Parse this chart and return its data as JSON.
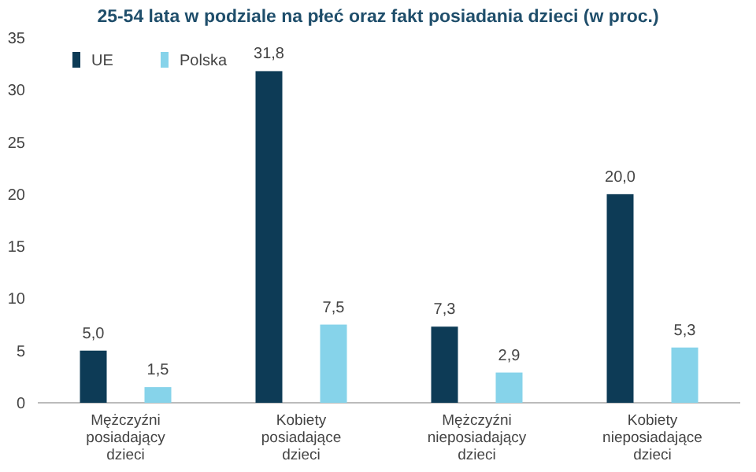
{
  "chart_data": {
    "type": "bar",
    "title": "25-54 lata w podziale na płeć oraz fakt posiadania dzieci (w proc.)",
    "categories": [
      "Mężczyźni posiadający dzieci",
      "Kobiety posiadające dzieci",
      "Mężczyźni nieposiadający dzieci",
      "Kobiety nieposiadające dzieci"
    ],
    "series": [
      {
        "name": "UE",
        "color": "#0d3b56",
        "values": [
          5.0,
          31.8,
          7.3,
          20.0
        ],
        "value_labels": [
          "5,0",
          "31,8",
          "7,3",
          "20,0"
        ]
      },
      {
        "name": "Polska",
        "color": "#86d3ea",
        "values": [
          1.5,
          7.5,
          2.9,
          5.3
        ],
        "value_labels": [
          "1,5",
          "7,5",
          "2,9",
          "5,3"
        ]
      }
    ],
    "ylim": [
      0,
      35
    ],
    "yticks": [
      0,
      5,
      10,
      15,
      20,
      25,
      30,
      35
    ],
    "legend": "top left"
  }
}
